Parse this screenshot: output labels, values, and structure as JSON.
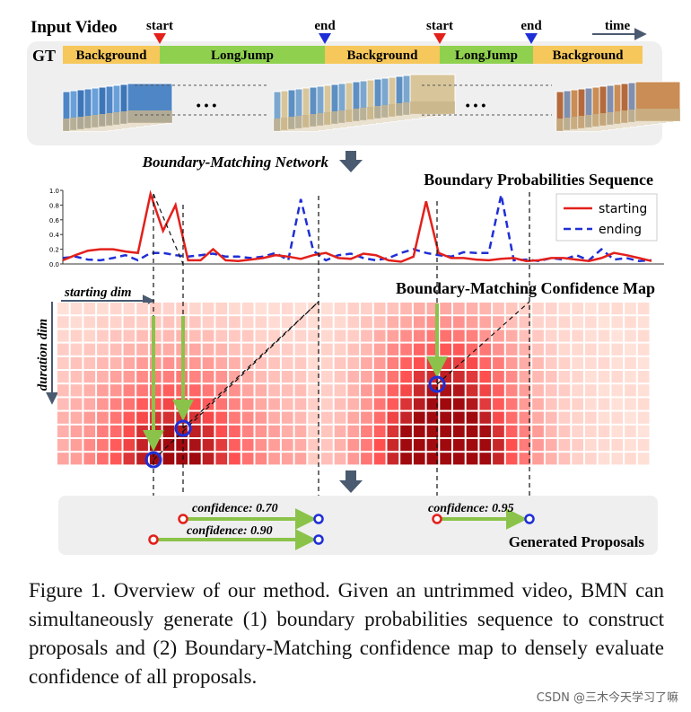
{
  "figure": {
    "input_video_label": "Input Video",
    "gt_label": "GT",
    "time_label": "time",
    "start_label": "start",
    "end_label": "end",
    "gt_segments": [
      "Background",
      "LongJump",
      "Background",
      "LongJump",
      "Background"
    ],
    "ellipsis": "• • •",
    "network_label": "Boundary-Matching Network",
    "bps_title": "Boundary Probabilities Sequence",
    "bm_title": "Boundary-Matching Confidence Map",
    "starting_dim_label": "starting dim",
    "duration_dim_label": "duration dim",
    "proposals_title": "Generated Proposals",
    "confidence_labels": [
      "confidence: 0.70",
      "confidence: 0.90",
      "confidence: 0.95"
    ],
    "colors": {
      "background_seg": "#f6c75a",
      "action_seg": "#8fd14f",
      "starting": "#e3201b",
      "ending": "#1f2fd6",
      "arrow_green": "#8bc34a",
      "panel": "#efefef"
    }
  },
  "chart_data": {
    "type": "line",
    "title": "Boundary Probabilities Sequence",
    "ylim": [
      0,
      1.0
    ],
    "yticks": [
      "0.0",
      "0.2",
      "0.4",
      "0.6",
      "0.8",
      "1.0"
    ],
    "legend_position": "top-right",
    "series": [
      {
        "name": "starting",
        "style": "solid",
        "color": "#e3201b",
        "values": [
          0.05,
          0.12,
          0.18,
          0.2,
          0.2,
          0.17,
          0.15,
          0.95,
          0.45,
          0.8,
          0.05,
          0.05,
          0.2,
          0.05,
          0.04,
          0.06,
          0.08,
          0.12,
          0.1,
          0.07,
          0.12,
          0.15,
          0.08,
          0.07,
          0.14,
          0.12,
          0.05,
          0.03,
          0.1,
          0.85,
          0.15,
          0.08,
          0.08,
          0.06,
          0.05,
          0.07,
          0.08,
          0.04,
          0.05,
          0.08,
          0.08,
          0.06,
          0.04,
          0.08,
          0.15,
          0.12,
          0.08,
          0.04
        ]
      },
      {
        "name": "ending",
        "style": "dashed",
        "color": "#1f2fd6",
        "values": [
          0.08,
          0.1,
          0.06,
          0.05,
          0.08,
          0.12,
          0.05,
          0.15,
          0.15,
          0.12,
          0.1,
          0.12,
          0.14,
          0.1,
          0.1,
          0.08,
          0.1,
          0.15,
          0.05,
          0.88,
          0.18,
          0.05,
          0.12,
          0.14,
          0.08,
          0.05,
          0.08,
          0.15,
          0.2,
          0.15,
          0.12,
          0.1,
          0.16,
          0.15,
          0.15,
          0.94,
          0.05,
          0.06,
          0.04,
          0.08,
          0.06,
          0.12,
          0.05,
          0.2,
          0.06,
          0.08,
          0.04,
          0.05
        ]
      }
    ]
  },
  "caption": "Figure 1. Overview of our method. Given an untrimmed video, BMN can simultaneously generate (1) boundary probabilities sequence to construct proposals and (2) Boundary-Matching confidence map to densely evaluate confidence of all proposals.",
  "watermark": "CSDN @三木今天学习了嘛"
}
